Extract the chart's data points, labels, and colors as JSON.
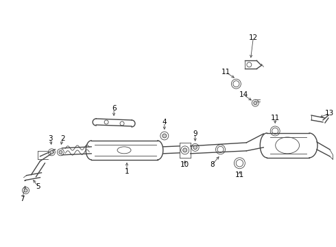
{
  "bg_color": "#ffffff",
  "line_color": "#444444",
  "label_color": "#000000",
  "font_size": 7.5,
  "fig_width": 4.9,
  "fig_height": 3.6,
  "dpi": 100
}
